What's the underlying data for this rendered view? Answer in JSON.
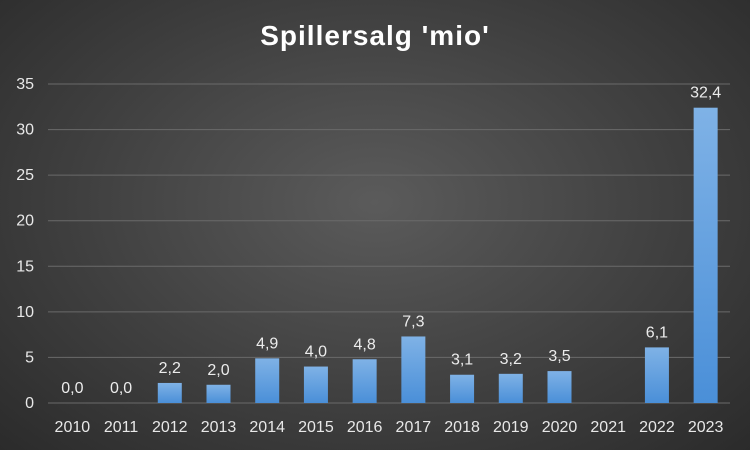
{
  "chart_data": {
    "type": "bar",
    "title": "Spillersalg 'mio'",
    "xlabel": "",
    "ylabel": "",
    "categories": [
      "2010",
      "2011",
      "2012",
      "2013",
      "2014",
      "2015",
      "2016",
      "2017",
      "2018",
      "2019",
      "2020",
      "2021",
      "2022",
      "2023"
    ],
    "values": [
      0.0,
      0.0,
      2.2,
      2.0,
      4.9,
      4.0,
      4.8,
      7.3,
      3.1,
      3.2,
      3.5,
      null,
      6.1,
      32.4
    ],
    "data_labels": [
      "0,0",
      "0,0",
      "2,2",
      "2,0",
      "4,9",
      "4,0",
      "4,8",
      "7,3",
      "3,1",
      "3,2",
      "3,5",
      "",
      "6,1",
      "32,4"
    ],
    "ylim": [
      0,
      35
    ],
    "yticks": [
      0,
      5,
      10,
      15,
      20,
      25,
      30,
      35
    ],
    "grid": true,
    "legend": "none",
    "colors": {
      "bar_top": "#7fb2e6",
      "bar_bottom": "#4a8fd8",
      "grid": "#6a6a6a",
      "text": "#e8e8e8"
    }
  }
}
